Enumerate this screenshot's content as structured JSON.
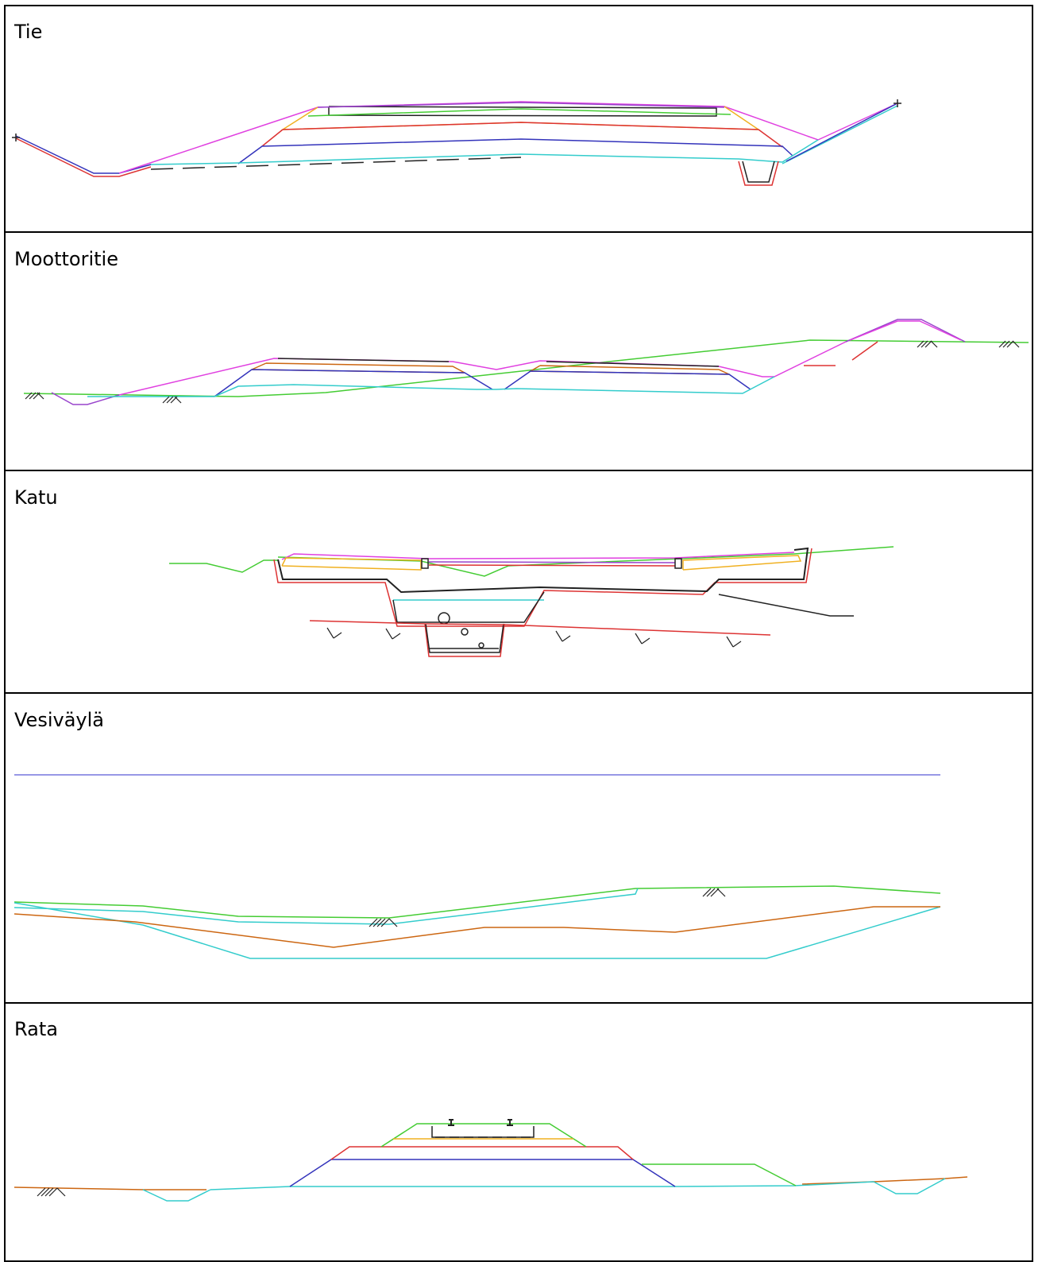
{
  "sections": [
    {
      "id": "tie",
      "label": "Tie",
      "description_icon": "road-cross-section"
    },
    {
      "id": "moottoritie",
      "label": "Moottoritie",
      "description_icon": "motorway-cross-section"
    },
    {
      "id": "katu",
      "label": "Katu",
      "description_icon": "street-cross-section"
    },
    {
      "id": "vesivayla",
      "label": "Vesiväylä",
      "description_icon": "waterway-cross-section"
    },
    {
      "id": "rata",
      "label": "Rata",
      "description_icon": "railway-cross-section"
    }
  ],
  "colors": {
    "magenta": "#e040e0",
    "green": "#44cc33",
    "yellow": "#f0b020",
    "red": "#dd3333",
    "blue": "#3333bb",
    "cyan": "#33cccc",
    "purple": "#9944cc",
    "orange": "#cc6611",
    "lightblue": "#7777dd",
    "black": "#222222"
  }
}
